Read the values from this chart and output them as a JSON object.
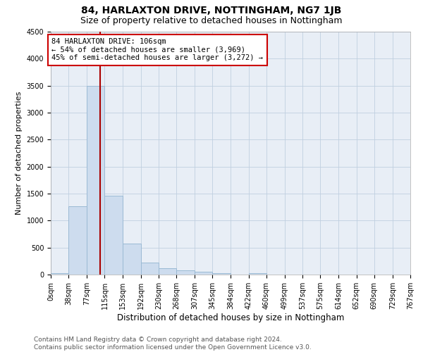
{
  "title": "84, HARLAXTON DRIVE, NOTTINGHAM, NG7 1JB",
  "subtitle": "Size of property relative to detached houses in Nottingham",
  "xlabel": "Distribution of detached houses by size in Nottingham",
  "ylabel": "Number of detached properties",
  "bar_color": "#cddcee",
  "bar_edge_color": "#9bbad4",
  "grid_color": "#c0cfe0",
  "ax_bg_color": "#e8eef6",
  "background_color": "#ffffff",
  "property_line_x": 106,
  "property_line_color": "#aa0000",
  "annotation_box_edgecolor": "#cc0000",
  "annotation_text": "84 HARLAXTON DRIVE: 106sqm\n← 54% of detached houses are smaller (3,969)\n45% of semi-detached houses are larger (3,272) →",
  "bin_edges": [
    0,
    38,
    77,
    115,
    153,
    192,
    230,
    268,
    307,
    345,
    384,
    422,
    460,
    499,
    537,
    575,
    614,
    652,
    690,
    729,
    767
  ],
  "bin_counts": [
    25,
    1270,
    3500,
    1460,
    575,
    220,
    120,
    80,
    55,
    25,
    5,
    25,
    5,
    0,
    0,
    0,
    0,
    0,
    0,
    0
  ],
  "ylim": [
    0,
    4500
  ],
  "yticks": [
    0,
    500,
    1000,
    1500,
    2000,
    2500,
    3000,
    3500,
    4000,
    4500
  ],
  "footer_text": "Contains HM Land Registry data © Crown copyright and database right 2024.\nContains public sector information licensed under the Open Government Licence v3.0.",
  "title_fontsize": 10,
  "subtitle_fontsize": 9,
  "xlabel_fontsize": 8.5,
  "ylabel_fontsize": 8,
  "tick_fontsize": 7,
  "annotation_fontsize": 7.5,
  "footer_fontsize": 6.5
}
